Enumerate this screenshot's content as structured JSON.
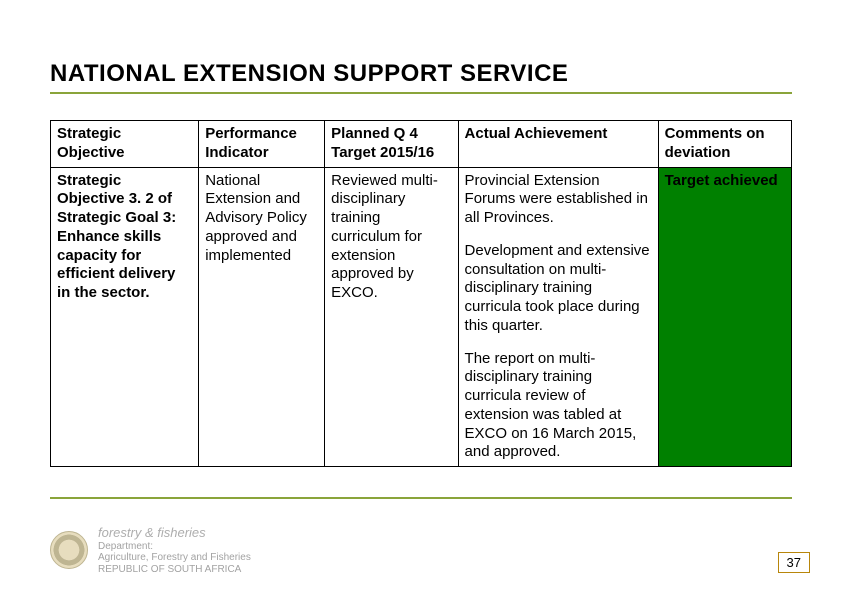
{
  "title": "NATIONAL  EXTENSION SUPPORT SERVICE",
  "table": {
    "columns": [
      "Strategic Objective",
      "Performance Indicator",
      "Planned Q 4 Target 2015/16",
      "Actual Achievement",
      "Comments on deviation"
    ],
    "row": {
      "strategic_objective": "Strategic Objective 3. 2 of Strategic Goal 3: Enhance skills capacity for efficient delivery in the sector.",
      "performance_indicator": "National Extension and Advisory Policy approved and implemented",
      "planned_target": "Reviewed multi-disciplinary training curriculum for extension approved by EXCO.",
      "actual_achievement_p1": "Provincial Extension Forums were established in all Provinces.",
      "actual_achievement_p2": "Development and extensive consultation on multi-disciplinary training curricula took place during this quarter.",
      "actual_achievement_p3": "The report on multi-disciplinary training curricula review of extension was tabled at EXCO on 16 March 2015, and approved.",
      "comments": "Target achieved"
    },
    "comments_bg_color": "#008000",
    "comments_text_color": "#ffffff",
    "border_color": "#000000",
    "font_size_pt": 11
  },
  "accent_line_color": "#8aa43a",
  "page_number": "37",
  "page_number_border_color": "#b8860b",
  "footer": {
    "dept_line1": "forestry & fisheries",
    "dept_line2": "Department:",
    "dept_line3": "Agriculture, Forestry and Fisheries",
    "dept_line4": "REPUBLIC OF SOUTH AFRICA"
  }
}
